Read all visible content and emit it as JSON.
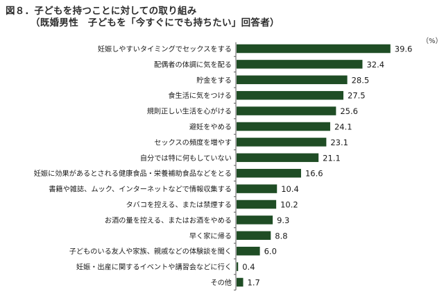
{
  "header": {
    "title_line1": "図８．子どもを持つことに対しての取り組み",
    "title_line2": "（既婚男性　子どもを「今すぐにでも持ちたい」回答者）",
    "unit": "（%）"
  },
  "chart_data": {
    "type": "bar",
    "orientation": "horizontal",
    "categories": [
      "妊娠しやすいタイミングでセックスをする",
      "配偶者の体調に気を配る",
      "貯金をする",
      "食生活に気をつける",
      "規則正しい生活を心がける",
      "避妊をやめる",
      "セックスの頻度を増やす",
      "自分では特に何もしていない",
      "妊娠に効果があるとされる健康食品・栄養補助食品などをとる",
      "書籍や雑誌、ムック、インターネットなどで情報収集する",
      "タバコを控える、または禁煙する",
      "お酒の量を控える、またはお酒をやめる",
      "早く家に帰る",
      "子どものいる友人や家族、親戚などの体験談を聞く",
      "妊娠・出産に関するイベントや講習会などに行く",
      "その他"
    ],
    "values": [
      39.6,
      32.4,
      28.5,
      27.5,
      25.6,
      24.1,
      23.1,
      21.1,
      16.6,
      10.4,
      10.2,
      9.3,
      8.8,
      6.0,
      0.4,
      1.7
    ],
    "value_labels": [
      "39.6",
      "32.4",
      "28.5",
      "27.5",
      "25.6",
      "24.1",
      "23.1",
      "21.1",
      "16.6",
      "10.4",
      "10.2",
      "9.3",
      "8.8",
      "6.0",
      "0.4",
      "1.7"
    ],
    "xlim": [
      0,
      45
    ],
    "bar_color": "#1f4d25",
    "axis_color": "#555555",
    "grid": false,
    "legend": "none"
  }
}
